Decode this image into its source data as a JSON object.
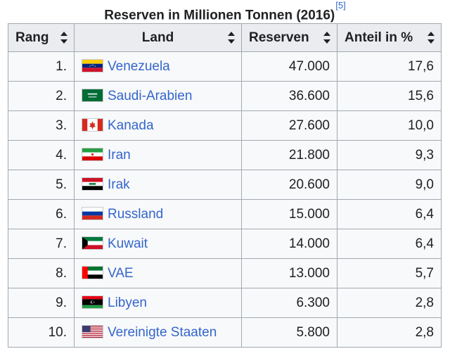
{
  "caption": {
    "title": "Reserven in Millionen Tonnen (2016)",
    "ref": "[5]"
  },
  "columns": [
    {
      "label": "Rang"
    },
    {
      "label": "Land"
    },
    {
      "label": "Reserven"
    },
    {
      "label": "Anteil in %"
    }
  ],
  "rows": [
    {
      "rank": "1.",
      "country": "Venezuela",
      "flag": "venezuela-flag-icon",
      "reserves": "47.000",
      "share": "17,6"
    },
    {
      "rank": "2.",
      "country": "Saudi-Arabien",
      "flag": "saudi-arabia-flag-icon",
      "reserves": "36.600",
      "share": "15,6"
    },
    {
      "rank": "3.",
      "country": "Kanada",
      "flag": "canada-flag-icon",
      "reserves": "27.600",
      "share": "10,0"
    },
    {
      "rank": "4.",
      "country": "Iran",
      "flag": "iran-flag-icon",
      "reserves": "21.800",
      "share": "9,3"
    },
    {
      "rank": "5.",
      "country": "Irak",
      "flag": "iraq-flag-icon",
      "reserves": "20.600",
      "share": "9,0"
    },
    {
      "rank": "6.",
      "country": "Russland",
      "flag": "russia-flag-icon",
      "reserves": "15.000",
      "share": "6,4"
    },
    {
      "rank": "7.",
      "country": "Kuwait",
      "flag": "kuwait-flag-icon",
      "reserves": "14.000",
      "share": "6,4"
    },
    {
      "rank": "8.",
      "country": "VAE",
      "flag": "uae-flag-icon",
      "reserves": "13.000",
      "share": "5,7"
    },
    {
      "rank": "9.",
      "country": "Libyen",
      "flag": "libya-flag-icon",
      "reserves": "6.300",
      "share": "2,8"
    },
    {
      "rank": "10.",
      "country": "Vereinigte Staaten",
      "flag": "usa-flag-icon",
      "reserves": "5.800",
      "share": "2,8"
    }
  ],
  "colors": {
    "link": "#3366cc",
    "header_bg": "#eaecf0",
    "cell_bg": "#f8f9fa",
    "border": "#a2a9b1"
  }
}
